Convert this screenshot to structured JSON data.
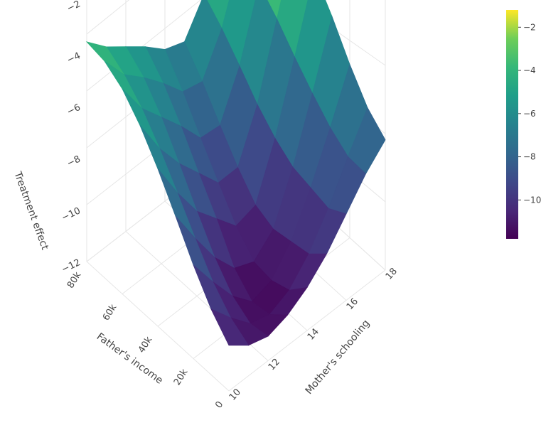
{
  "chart_data": {
    "type": "surface",
    "colorscale": "viridis",
    "x_axis": {
      "label": "Father's income",
      "ticks": [
        "0",
        "20k",
        "40k",
        "60k",
        "80k"
      ],
      "range": [
        0,
        80000
      ]
    },
    "y_axis": {
      "label": "Mother's schooling",
      "ticks": [
        "10",
        "12",
        "14",
        "16",
        "18"
      ],
      "range": [
        10,
        18
      ]
    },
    "z_axis": {
      "label": "Treatment effect",
      "ticks": [
        "−12",
        "−10",
        "−8",
        "−6",
        "−4",
        "−2"
      ],
      "range": [
        -12,
        -1
      ]
    },
    "colorbar": {
      "ticks": [
        "−2",
        "−4",
        "−6",
        "−8",
        "−10"
      ],
      "range": [
        -11.8,
        -1.2
      ],
      "placement": "right"
    },
    "grid": true,
    "z_values": [
      [
        -10.5,
        -11.0,
        -11.2,
        -11.0,
        -10.6,
        -10.0,
        -9.2,
        -8.4,
        -7.8
      ],
      [
        -9.8,
        -10.6,
        -11.3,
        -11.5,
        -11.2,
        -10.5,
        -9.5,
        -8.3,
        -7.2
      ],
      [
        -8.8,
        -9.9,
        -10.9,
        -11.6,
        -11.4,
        -10.6,
        -9.3,
        -7.8,
        -6.2
      ],
      [
        -7.6,
        -8.9,
        -10.1,
        -11.0,
        -11.3,
        -10.7,
        -9.1,
        -7.1,
        -5.0
      ],
      [
        -6.4,
        -7.8,
        -9.0,
        -9.8,
        -10.6,
        -10.4,
        -8.6,
        -6.3,
        -3.9
      ],
      [
        -5.3,
        -6.7,
        -7.8,
        -8.7,
        -9.6,
        -9.6,
        -7.9,
        -5.4,
        -2.9
      ],
      [
        -4.4,
        -5.7,
        -6.6,
        -7.5,
        -8.5,
        -8.6,
        -7.0,
        -4.6,
        -2.1
      ],
      [
        -3.8,
        -4.9,
        -5.6,
        -6.4,
        -7.3,
        -7.5,
        -6.1,
        -3.9,
        -1.6
      ],
      [
        -3.5,
        -4.3,
        -4.9,
        -5.5,
        -6.2,
        -6.5,
        -5.3,
        -3.4,
        -1.3
      ]
    ]
  }
}
